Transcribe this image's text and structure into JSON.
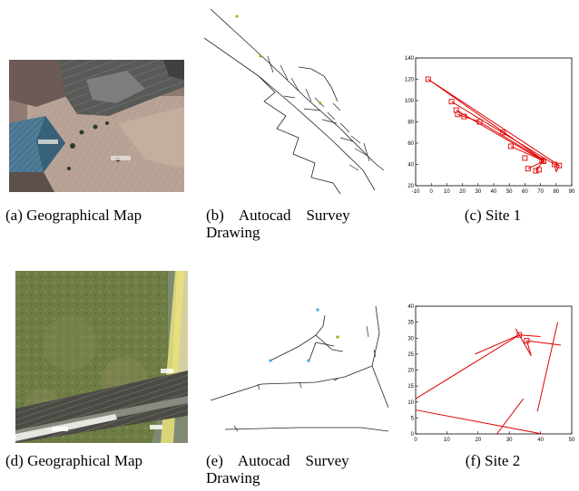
{
  "captions": {
    "a": "(a) Geographical Map",
    "b_line1": "(b)    Autocad    Survey",
    "b_line2": "Drawing",
    "c": "(c) Site 1",
    "d": "(d) Geographical Map",
    "e_line1": "(e)    Autocad    Survey",
    "e_line2": "Drawing",
    "f": "(f) Site 2"
  },
  "chart_data": [
    {
      "type": "line",
      "title": "",
      "xlabel": "",
      "ylabel": "",
      "xlim": [
        -10,
        90
      ],
      "ylim": [
        20,
        140
      ],
      "xticks": [
        "-10",
        "0",
        "10",
        "20",
        "30",
        "40",
        "50",
        "60",
        "70",
        "80",
        "90"
      ],
      "yticks": [
        "20",
        "40",
        "60",
        "80",
        "100",
        "120",
        "140"
      ],
      "color": "#e00000",
      "markers": [
        [
          -2,
          120
        ],
        [
          13,
          99
        ],
        [
          16,
          91
        ],
        [
          17,
          87
        ],
        [
          21,
          85
        ],
        [
          31,
          80
        ],
        [
          46,
          70
        ],
        [
          51,
          57
        ],
        [
          60,
          46
        ],
        [
          62,
          36
        ],
        [
          67,
          34
        ],
        [
          69,
          35
        ],
        [
          71,
          44
        ],
        [
          72,
          43
        ],
        [
          79,
          40
        ],
        [
          82,
          39
        ]
      ],
      "segments": [
        [
          [
            -2,
            120
          ],
          [
            82,
            39
          ]
        ],
        [
          [
            -2,
            120
          ],
          [
            72,
            44
          ]
        ],
        [
          [
            13,
            99
          ],
          [
            79,
            40
          ]
        ],
        [
          [
            16,
            91
          ],
          [
            72,
            43
          ]
        ],
        [
          [
            17,
            87
          ],
          [
            31,
            80
          ]
        ],
        [
          [
            31,
            80
          ],
          [
            72,
            44
          ]
        ],
        [
          [
            51,
            57
          ],
          [
            71,
            44
          ]
        ],
        [
          [
            62,
            36
          ],
          [
            72,
            43
          ]
        ],
        [
          [
            67,
            34
          ],
          [
            72,
            44
          ]
        ],
        [
          [
            79,
            40
          ],
          [
            82,
            39
          ]
        ],
        [
          [
            79,
            40
          ],
          [
            80,
            33
          ]
        ],
        [
          [
            80,
            33
          ],
          [
            82,
            39
          ]
        ]
      ]
    },
    {
      "type": "line",
      "title": "",
      "xlabel": "",
      "ylabel": "",
      "xlim": [
        0,
        50
      ],
      "ylim": [
        0,
        40
      ],
      "xticks": [
        "0",
        "10",
        "20",
        "30",
        "40",
        "50"
      ],
      "yticks": [
        "0",
        "5",
        "10",
        "15",
        "20",
        "25",
        "30",
        "35",
        "40"
      ],
      "color": "#e00000",
      "markers": [
        [
          33.2,
          31.0
        ],
        [
          35.6,
          29.2
        ]
      ],
      "segments": [
        [
          [
            0,
            11
          ],
          [
            33.2,
            31.0
          ]
        ],
        [
          [
            0,
            7.5
          ],
          [
            40.5,
            0
          ]
        ],
        [
          [
            26,
            0
          ],
          [
            34.5,
            11
          ]
        ],
        [
          [
            32,
            33
          ],
          [
            37,
            24.5
          ]
        ],
        [
          [
            35.6,
            29.2
          ],
          [
            37,
            24.5
          ]
        ],
        [
          [
            19,
            25
          ],
          [
            33.2,
            31.0
          ]
        ],
        [
          [
            33.2,
            31.0
          ],
          [
            40,
            30.5
          ]
        ],
        [
          [
            35.6,
            29.2
          ],
          [
            46.5,
            27.8
          ]
        ],
        [
          [
            39,
            7
          ],
          [
            45.5,
            35
          ]
        ]
      ]
    }
  ]
}
